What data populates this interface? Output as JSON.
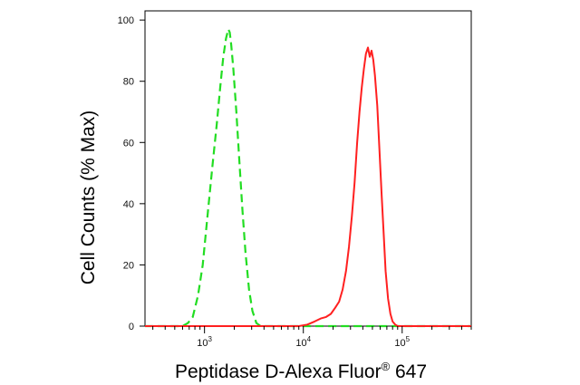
{
  "chart_data": {
    "type": "line",
    "title": "",
    "xlabel": {
      "main": "Peptidase D-Alexa Fluor",
      "superscript": "®",
      "suffix": " 647"
    },
    "ylabel": "Cell Counts (% Max)",
    "x_scale": "log",
    "xlim": [
      250,
      500000
    ],
    "ylim": [
      0,
      103
    ],
    "x_ticks": [
      {
        "value": 1000,
        "base": "10",
        "exp": "3"
      },
      {
        "value": 10000,
        "base": "10",
        "exp": "4"
      },
      {
        "value": 100000,
        "base": "10",
        "exp": "5"
      }
    ],
    "y_ticks": [
      0,
      20,
      40,
      60,
      80,
      100
    ],
    "grid": false,
    "series": [
      {
        "color": "#22dd22",
        "style": "dashed",
        "points": [
          [
            250,
            0
          ],
          [
            600,
            0
          ],
          [
            680,
            1
          ],
          [
            760,
            3
          ],
          [
            860,
            10
          ],
          [
            960,
            20
          ],
          [
            1080,
            37
          ],
          [
            1200,
            52
          ],
          [
            1330,
            66
          ],
          [
            1450,
            79
          ],
          [
            1550,
            88
          ],
          [
            1650,
            94
          ],
          [
            1740,
            97
          ],
          [
            1800,
            96
          ],
          [
            1860,
            92
          ],
          [
            1960,
            84
          ],
          [
            2100,
            70
          ],
          [
            2250,
            54
          ],
          [
            2420,
            38
          ],
          [
            2600,
            24
          ],
          [
            2820,
            12
          ],
          [
            3050,
            5
          ],
          [
            3350,
            1
          ],
          [
            3700,
            0
          ],
          [
            500000,
            0
          ]
        ]
      },
      {
        "color": "#ff2020",
        "style": "solid",
        "points": [
          [
            250,
            0
          ],
          [
            9000,
            0
          ],
          [
            11000,
            0.5
          ],
          [
            13000,
            1.5
          ],
          [
            15000,
            2.5
          ],
          [
            17000,
            3
          ],
          [
            19000,
            4
          ],
          [
            21000,
            6
          ],
          [
            23000,
            8
          ],
          [
            25000,
            12
          ],
          [
            27000,
            18
          ],
          [
            29000,
            26
          ],
          [
            31000,
            36
          ],
          [
            33000,
            47
          ],
          [
            35000,
            60
          ],
          [
            37000,
            70
          ],
          [
            39000,
            78
          ],
          [
            41000,
            84
          ],
          [
            43000,
            89
          ],
          [
            45000,
            91
          ],
          [
            47000,
            88
          ],
          [
            49000,
            90
          ],
          [
            51000,
            87
          ],
          [
            53000,
            82
          ],
          [
            56000,
            72
          ],
          [
            59000,
            57
          ],
          [
            62000,
            43
          ],
          [
            65000,
            30
          ],
          [
            68000,
            18
          ],
          [
            72000,
            9
          ],
          [
            76000,
            4
          ],
          [
            80000,
            1.5
          ],
          [
            85000,
            0.5
          ],
          [
            90000,
            0
          ],
          [
            500000,
            0
          ]
        ]
      }
    ]
  }
}
